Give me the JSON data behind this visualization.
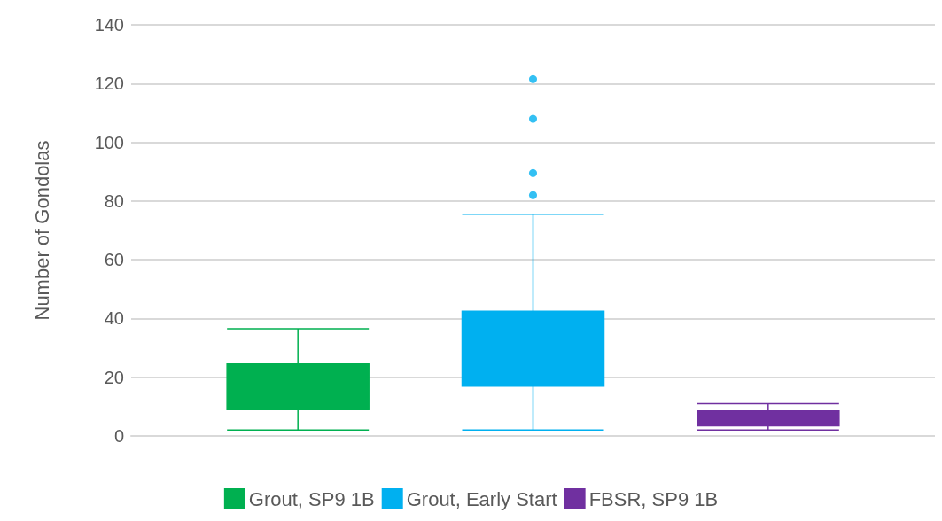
{
  "chart_data": {
    "type": "box",
    "ylabel": "Number of Gondolas",
    "categories": [
      null
    ],
    "ylim": [
      0,
      140
    ],
    "yticks": [
      0,
      20,
      40,
      60,
      80,
      100,
      120,
      140
    ],
    "grid": "y",
    "legend": "bottom",
    "tick_labels": "y",
    "series": [
      {
        "name": "Grout, SP9 1B",
        "color": "#00b050",
        "boxes": [
          {
            "low": 2,
            "q1": 9,
            "median": 16,
            "q3": 24.5,
            "high": 36.5
          }
        ]
      },
      {
        "name": "Grout, Early Start",
        "color": "#00b0f0",
        "boxes": [
          {
            "low": 2,
            "q1": 17,
            "median": 28,
            "q3": 42.5,
            "high": 75.5,
            "outliers": [
              82,
              89.5,
              108,
              121.5
            ]
          }
        ]
      },
      {
        "name": "FBSR, SP9 1B",
        "color": "#7030a0",
        "boxes": [
          {
            "low": 2,
            "q1": 3.5,
            "median": 6,
            "q3": 8.5,
            "high": 11
          }
        ]
      }
    ]
  }
}
